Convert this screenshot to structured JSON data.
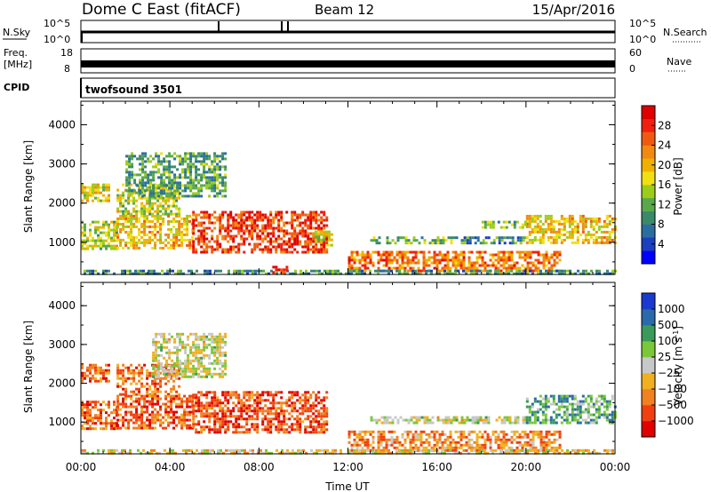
{
  "header": {
    "station": "Dome C East (fitACF)",
    "beam": "Beam 12",
    "date": "15/Apr/2016"
  },
  "strips": {
    "nsky": {
      "label": "N.Sky",
      "ticks": [
        "10^5",
        "10^0"
      ],
      "right_label": "N.Search",
      "right_ticks": [
        "10^5",
        "10^0"
      ]
    },
    "freq": {
      "label_line1": "Freq.",
      "label_line2": "[MHz]",
      "ticks": [
        "18",
        "8"
      ],
      "right_label": "Nave",
      "right_ticks": [
        "60",
        "0"
      ]
    },
    "cpid": {
      "label": "CPID",
      "program": "twofsound 3501"
    }
  },
  "chart_data": [
    {
      "type": "heatmap",
      "name": "power",
      "ylabel": "Slant Range [km]",
      "xlabel": "",
      "ylim": [
        180,
        4600
      ],
      "yticks": [
        "1000",
        "2000",
        "3000",
        "4000"
      ],
      "xlim_hours": [
        0,
        24
      ],
      "colorbar": {
        "label": "Power [dB]",
        "ticks": [
          "28",
          "24",
          "20",
          "16",
          "12",
          "8",
          "4"
        ],
        "range": [
          0,
          32
        ],
        "colors": [
          "#0000ff",
          "#1a3fbf",
          "#2a6ea0",
          "#3a8a6a",
          "#5aa84a",
          "#9ccc1a",
          "#f0e010",
          "#f0b000",
          "#f08a10",
          "#f05a10",
          "#f02010",
          "#e00000"
        ]
      },
      "echo_regions": [
        {
          "t0": 0.0,
          "t1": 1.2,
          "r0": 2050,
          "r1": 2500,
          "level": 0.55
        },
        {
          "t0": 1.6,
          "t1": 4.4,
          "r0": 1700,
          "r1": 2500,
          "level": 0.5
        },
        {
          "t0": 2.0,
          "t1": 6.5,
          "r0": 2200,
          "r1": 3300,
          "level": 0.35
        },
        {
          "t0": 0.0,
          "t1": 1.6,
          "r0": 850,
          "r1": 1550,
          "level": 0.5
        },
        {
          "t0": 1.6,
          "t1": 5.0,
          "r0": 850,
          "r1": 1700,
          "level": 0.6
        },
        {
          "t0": 5.0,
          "t1": 11.0,
          "r0": 750,
          "r1": 1800,
          "level": 0.85
        },
        {
          "t0": 10.5,
          "t1": 11.3,
          "r0": 900,
          "r1": 1300,
          "level": 0.5
        },
        {
          "t0": 13.0,
          "t1": 17.2,
          "r0": 1000,
          "r1": 1150,
          "level": 0.4
        },
        {
          "t0": 17.2,
          "t1": 20.0,
          "r0": 1000,
          "r1": 1150,
          "level": 0.3
        },
        {
          "t0": 12.0,
          "t1": 21.5,
          "r0": 250,
          "r1": 780,
          "level": 0.75
        },
        {
          "t0": 20.0,
          "t1": 24.0,
          "r0": 1000,
          "r1": 1700,
          "level": 0.6
        },
        {
          "t0": 18.0,
          "t1": 20.0,
          "r0": 1350,
          "r1": 1550,
          "level": 0.4
        },
        {
          "t0": 0.0,
          "t1": 24.0,
          "r0": 180,
          "r1": 300,
          "level": 0.3
        },
        {
          "t0": 8.6,
          "t1": 9.2,
          "r0": 200,
          "r1": 400,
          "level": 0.95
        }
      ]
    },
    {
      "type": "heatmap",
      "name": "velocity",
      "ylabel": "Slant Range [km]",
      "xlabel": "Time UT",
      "ylim": [
        180,
        4600
      ],
      "yticks": [
        "1000",
        "2000",
        "3000",
        "4000"
      ],
      "xticks": [
        "00:00",
        "04:00",
        "08:00",
        "12:00",
        "16:00",
        "20:00",
        "00:00"
      ],
      "xlim_hours": [
        0,
        24
      ],
      "colorbar": {
        "label": "Velocity [m s",
        "label_sup": "-1",
        "label_end": "]",
        "ticks": [
          "1000",
          "500",
          "100",
          "25",
          "−25",
          "−100",
          "−500",
          "−1000"
        ],
        "colors": [
          "#e00000",
          "#f04010",
          "#f08020",
          "#f0b020",
          "#c8c8c8",
          "#7ac83a",
          "#3a9a5a",
          "#2a6aaa",
          "#1a3acf"
        ]
      },
      "echo_regions": [
        {
          "t0": 0.0,
          "t1": 1.2,
          "r0": 2050,
          "r1": 2500,
          "level": 0.22
        },
        {
          "t0": 1.6,
          "t1": 4.4,
          "r0": 1700,
          "r1": 2500,
          "level": 0.25
        },
        {
          "t0": 3.2,
          "t1": 6.5,
          "r0": 2200,
          "r1": 3300,
          "level": 0.5
        },
        {
          "t0": 0.0,
          "t1": 1.6,
          "r0": 850,
          "r1": 1550,
          "level": 0.22
        },
        {
          "t0": 1.6,
          "t1": 5.0,
          "r0": 850,
          "r1": 1700,
          "level": 0.2
        },
        {
          "t0": 5.0,
          "t1": 11.0,
          "r0": 750,
          "r1": 1800,
          "level": 0.18
        },
        {
          "t0": 13.0,
          "t1": 20.0,
          "r0": 1000,
          "r1": 1150,
          "level": 0.5
        },
        {
          "t0": 12.0,
          "t1": 21.5,
          "r0": 250,
          "r1": 780,
          "level": 0.3
        },
        {
          "t0": 20.0,
          "t1": 24.0,
          "r0": 1000,
          "r1": 1700,
          "level": 0.68
        },
        {
          "t0": 0.0,
          "t1": 24.0,
          "r0": 180,
          "r1": 300,
          "level": 0.45
        }
      ]
    }
  ]
}
